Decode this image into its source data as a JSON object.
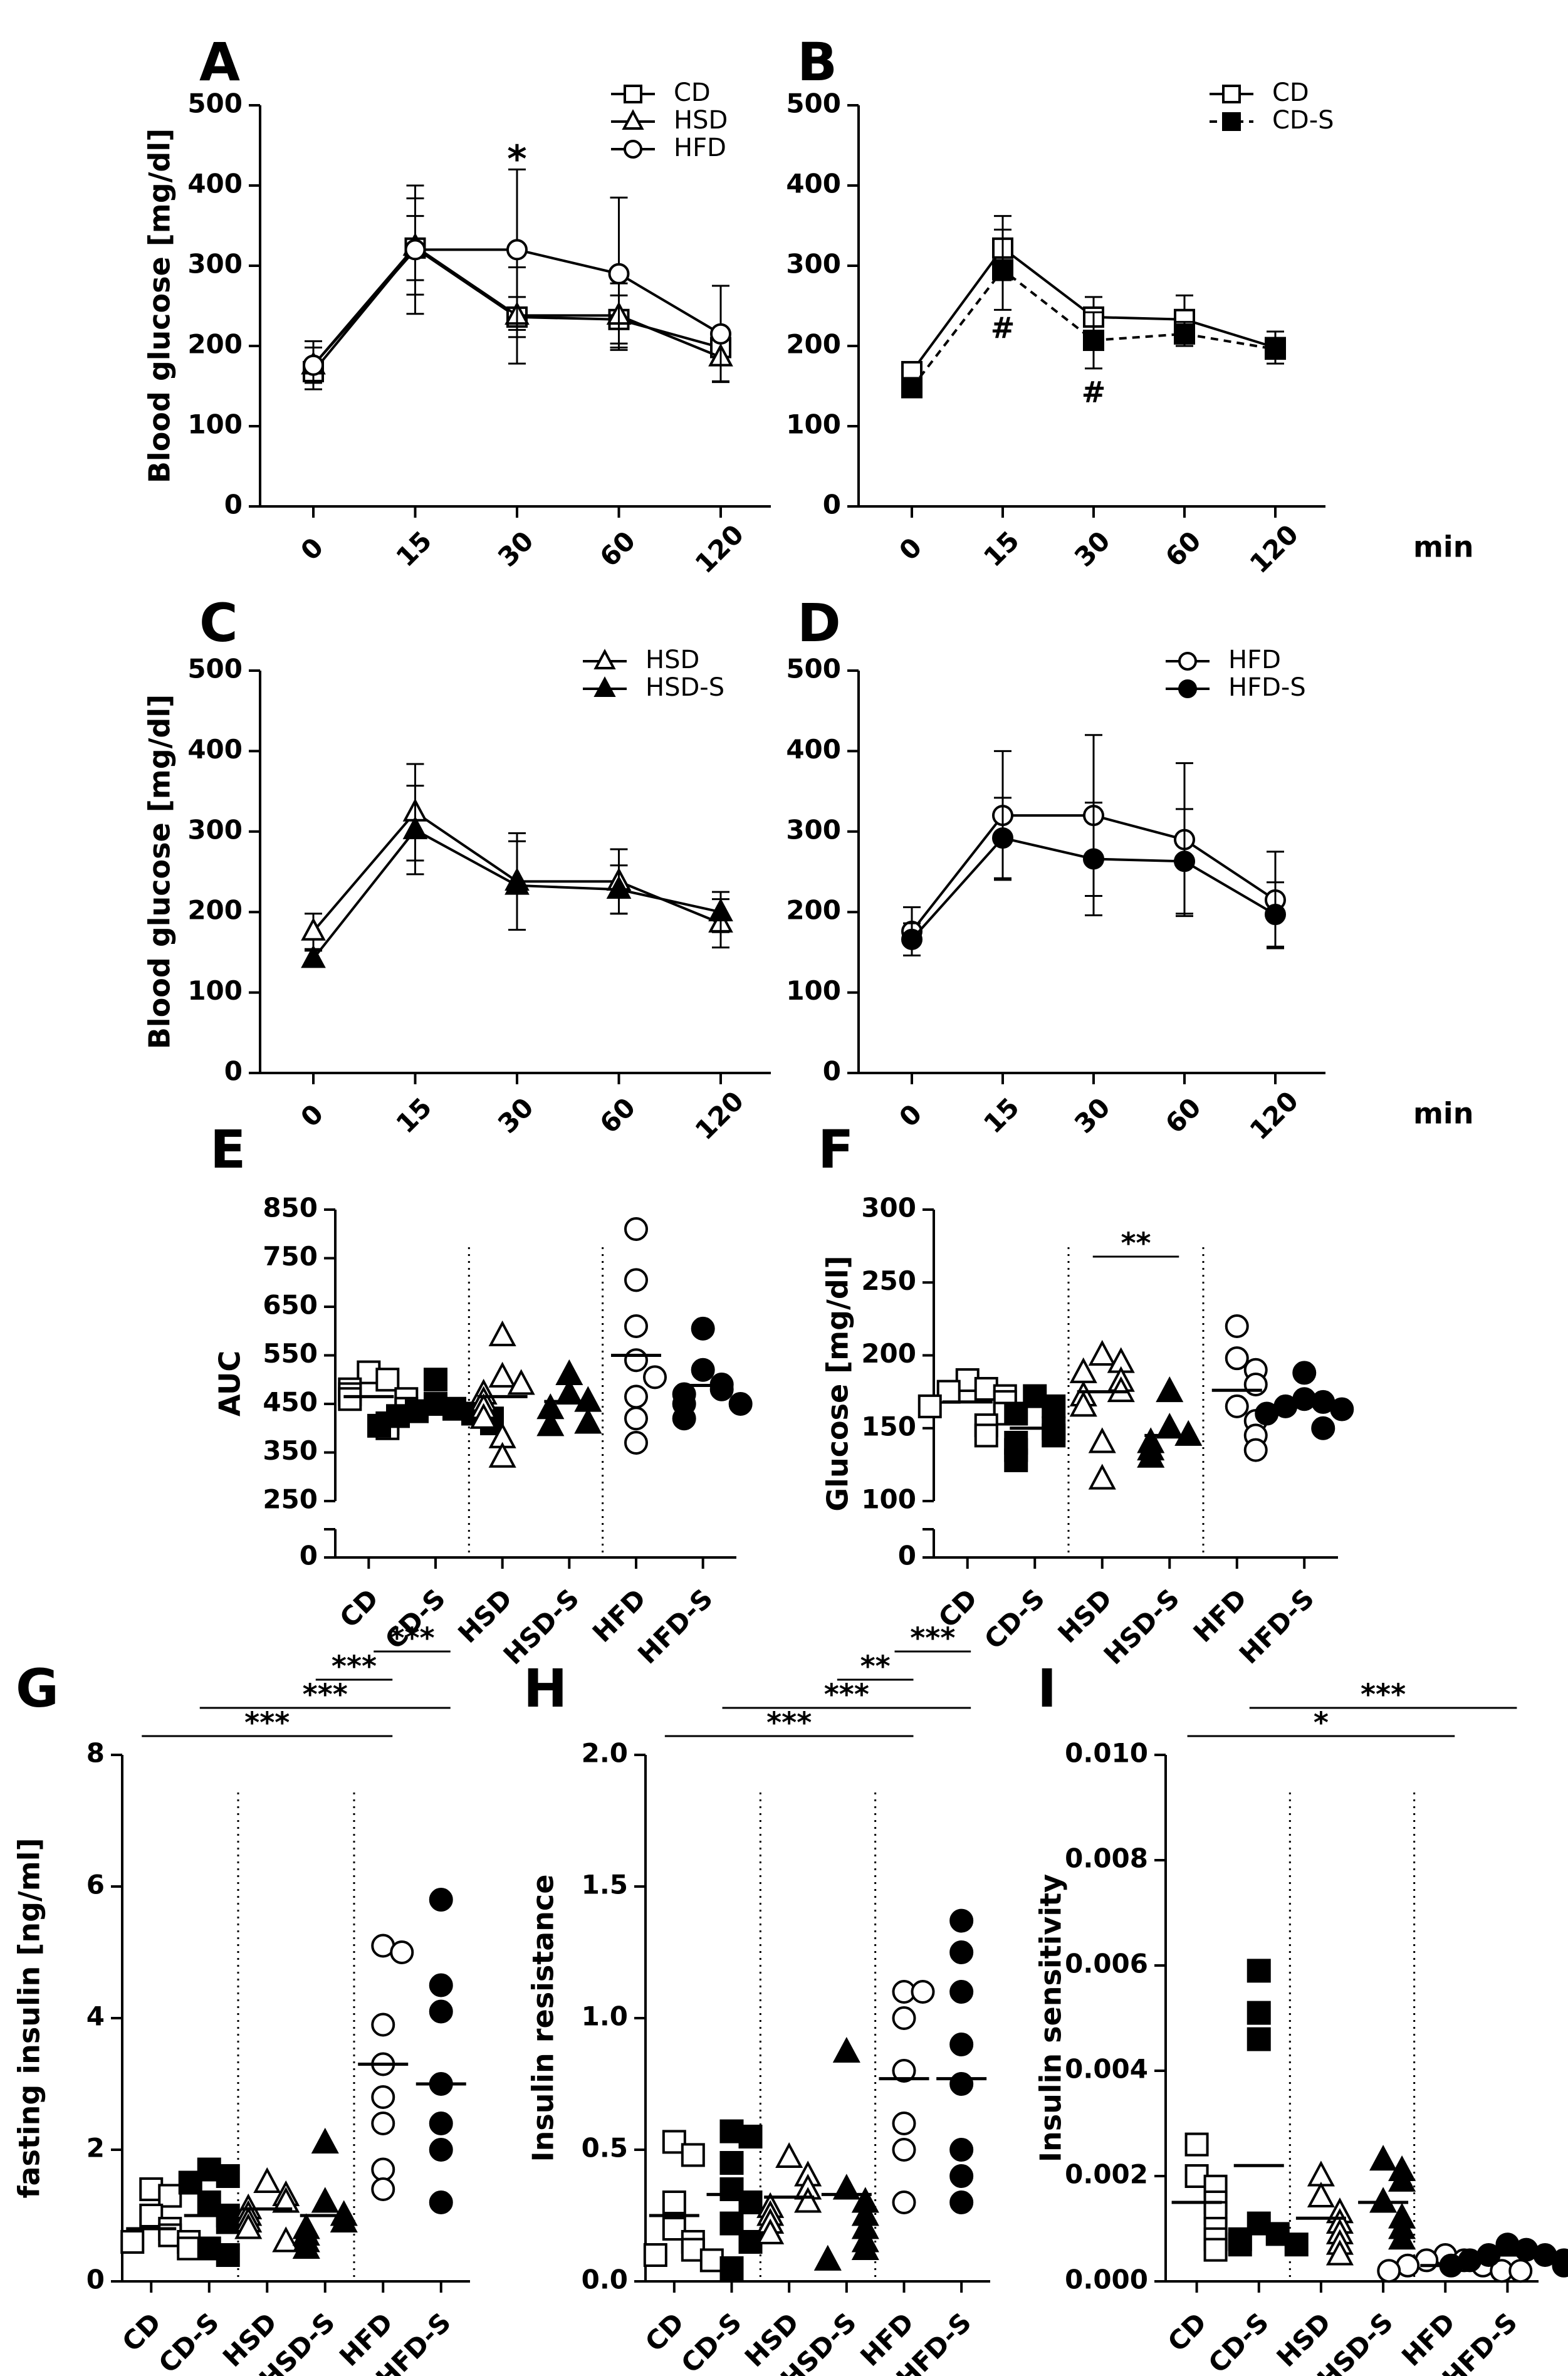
{
  "chart_data": [
    {
      "id": "A",
      "type": "line",
      "panel_label": "A",
      "ylabel": "Blood glucose [mg/dl]",
      "xlabel": "min",
      "ylim": [
        0,
        500
      ],
      "yticks": [
        0,
        100,
        200,
        300,
        400,
        500
      ],
      "categories": [
        "0",
        "15",
        "30",
        "60",
        "120"
      ],
      "series": [
        {
          "name": "CD",
          "marker": "square-open",
          "dashed": false,
          "values": [
            168,
            322,
            236,
            233,
            198
          ],
          "err": [
            12,
            40,
            25,
            30,
            20
          ]
        },
        {
          "name": "HSD",
          "marker": "triangle-open",
          "dashed": false,
          "values": [
            176,
            324,
            238,
            238,
            186
          ],
          "err": [
            22,
            60,
            60,
            40,
            30
          ]
        },
        {
          "name": "HFD",
          "marker": "circle-open",
          "dashed": false,
          "values": [
            176,
            320,
            320,
            290,
            215
          ],
          "err": [
            30,
            80,
            100,
            95,
            60
          ]
        }
      ],
      "annotations": [
        {
          "text": "*",
          "x": "30",
          "y": 430
        }
      ]
    },
    {
      "id": "B",
      "type": "line",
      "panel_label": "B",
      "ylabel": "",
      "xlabel": "min",
      "ylim": [
        0,
        500
      ],
      "yticks": [
        0,
        100,
        200,
        300,
        400,
        500
      ],
      "categories": [
        "0",
        "15",
        "30",
        "60",
        "120"
      ],
      "series": [
        {
          "name": "CD",
          "marker": "square-open",
          "dashed": false,
          "values": [
            168,
            322,
            236,
            233,
            198
          ],
          "err": [
            12,
            40,
            25,
            30,
            20
          ]
        },
        {
          "name": "CD-S",
          "marker": "square-filled",
          "dashed": true,
          "values": [
            148,
            295,
            207,
            215,
            196
          ],
          "err": [
            12,
            50,
            35,
            15,
            12
          ]
        }
      ],
      "annotations": [
        {
          "text": "#",
          "x": "15",
          "y": 220
        },
        {
          "text": "#",
          "x": "30",
          "y": 140
        }
      ]
    },
    {
      "id": "C",
      "type": "line",
      "panel_label": "C",
      "ylabel": "Blood glucose [mg/dl]",
      "xlabel": "min",
      "ylim": [
        0,
        500
      ],
      "yticks": [
        0,
        100,
        200,
        300,
        400,
        500
      ],
      "categories": [
        "0",
        "15",
        "30",
        "60",
        "120"
      ],
      "series": [
        {
          "name": "HSD",
          "marker": "triangle-open",
          "dashed": false,
          "values": [
            176,
            324,
            238,
            238,
            186
          ],
          "err": [
            22,
            60,
            60,
            40,
            30
          ]
        },
        {
          "name": "HSD-S",
          "marker": "triangle-filled",
          "dashed": false,
          "values": [
            142,
            302,
            233,
            228,
            200
          ],
          "err": [
            10,
            55,
            55,
            30,
            25
          ]
        }
      ],
      "annotations": []
    },
    {
      "id": "D",
      "type": "line",
      "panel_label": "D",
      "ylabel": "",
      "xlabel": "min",
      "ylim": [
        0,
        500
      ],
      "yticks": [
        0,
        100,
        200,
        300,
        400,
        500
      ],
      "categories": [
        "0",
        "15",
        "30",
        "60",
        "120"
      ],
      "series": [
        {
          "name": "HFD",
          "marker": "circle-open",
          "dashed": false,
          "values": [
            176,
            320,
            320,
            290,
            215
          ],
          "err": [
            30,
            80,
            100,
            95,
            60
          ]
        },
        {
          "name": "HFD-S",
          "marker": "circle-filled",
          "dashed": false,
          "values": [
            166,
            292,
            266,
            263,
            197
          ],
          "err": [
            20,
            50,
            70,
            65,
            40
          ]
        }
      ],
      "annotations": []
    },
    {
      "id": "E",
      "type": "scatter",
      "panel_label": "E",
      "ylabel": "AUC",
      "ylim": [
        250,
        850
      ],
      "yticks": [
        250,
        350,
        450,
        550,
        650,
        750,
        850
      ],
      "extra_ytick": "0",
      "categories": [
        "CD",
        "CD-S",
        "HSD",
        "HSD-S",
        "HFD",
        "HFD-S"
      ],
      "markers": [
        "square-open",
        "square-filled",
        "triangle-open",
        "triangle-filled",
        "circle-open",
        "circle-filled"
      ],
      "groups": [
        [
          515,
          500,
          480,
          470,
          460,
          460,
          440,
          410,
          400
        ],
        [
          500,
          450,
          440,
          435,
          430,
          425,
          420,
          410,
          405
        ],
        [
          590,
          505,
          490,
          470,
          455,
          440,
          420,
          380,
          340
        ],
        [
          510,
          470,
          455,
          440,
          410,
          405
        ],
        [
          810,
          705,
          610,
          540,
          505,
          465,
          420,
          370
        ],
        [
          605,
          520,
          490,
          480,
          470,
          450,
          450,
          420
        ]
      ],
      "means": [
        465,
        440,
        465,
        455,
        550,
        488
      ],
      "separators_after": [
        2,
        4
      ],
      "brackets": []
    },
    {
      "id": "F",
      "type": "scatter",
      "panel_label": "F",
      "ylabel": "Glucose [mg/dl]",
      "ylim": [
        100,
        300
      ],
      "yticks": [
        100,
        150,
        200,
        250,
        300
      ],
      "extra_ytick": "0",
      "categories": [
        "CD",
        "CD-S",
        "HSD",
        "HSD-S",
        "HFD",
        "HFD-S"
      ],
      "markers": [
        "square-open",
        "square-filled",
        "triangle-open",
        "triangle-filled",
        "circle-open",
        "circle-filled"
      ],
      "groups": [
        [
          183,
          177,
          175,
          172,
          168,
          165,
          160,
          152,
          145
        ],
        [
          172,
          165,
          160,
          150,
          145,
          140,
          135,
          128
        ],
        [
          200,
          195,
          188,
          182,
          175,
          172,
          165,
          140,
          115
        ],
        [
          175,
          150,
          145,
          140,
          135,
          130
        ],
        [
          220,
          198,
          190,
          180,
          165,
          155,
          145,
          135
        ],
        [
          188,
          170,
          168,
          165,
          163,
          160,
          150
        ]
      ],
      "means": [
        168,
        150,
        175,
        145,
        176,
        166
      ],
      "separators_after": [
        2,
        4
      ],
      "brackets": [
        {
          "from": 2,
          "to": 3,
          "text": "**",
          "level": 0
        }
      ]
    },
    {
      "id": "G",
      "type": "scatter",
      "panel_label": "G",
      "ylabel": "fasting insulin [ng/ml]",
      "ylim": [
        0,
        8
      ],
      "yticks": [
        0,
        2,
        4,
        6,
        8
      ],
      "categories": [
        "CD",
        "CD-S",
        "HSD",
        "HSD-S",
        "HFD",
        "HFD-S"
      ],
      "markers": [
        "square-open",
        "square-filled",
        "triangle-open",
        "triangle-filled",
        "circle-open",
        "circle-filled"
      ],
      "groups": [
        [
          1.4,
          1.3,
          1.0,
          0.8,
          0.7,
          0.6,
          0.6,
          0.5
        ],
        [
          1.7,
          1.6,
          1.5,
          1.2,
          1.0,
          0.9,
          0.5,
          0.4
        ],
        [
          1.5,
          1.3,
          1.2,
          1.1,
          1.0,
          0.9,
          0.8,
          0.6
        ],
        [
          2.1,
          1.2,
          1.0,
          0.9,
          0.8,
          0.7,
          0.6,
          0.5
        ],
        [
          5.1,
          5.0,
          3.9,
          3.3,
          2.8,
          2.4,
          1.7,
          1.4
        ],
        [
          5.8,
          4.5,
          4.1,
          3.0,
          2.4,
          2.0,
          1.2
        ]
      ],
      "means": [
        0.8,
        1.0,
        1.1,
        1.0,
        3.3,
        3.0
      ],
      "separators_after": [
        2,
        4
      ],
      "brackets": [
        {
          "from": 0,
          "to": 4,
          "text": "***",
          "level": 0
        },
        {
          "from": 1,
          "to": 5,
          "text": "***",
          "level": 1
        },
        {
          "from": 3,
          "to": 4,
          "text": "***",
          "level": 2
        },
        {
          "from": 4,
          "to": 5,
          "text": "***",
          "level": 3
        }
      ]
    },
    {
      "id": "H",
      "type": "scatter",
      "panel_label": "H",
      "ylabel": "Insulin resistance",
      "ylim": [
        0,
        2.0
      ],
      "yticks": [
        0.0,
        0.5,
        1.0,
        1.5,
        2.0
      ],
      "categories": [
        "CD",
        "CD-S",
        "HSD",
        "HSD-S",
        "HFD",
        "HFD-S"
      ],
      "markers": [
        "square-open",
        "square-filled",
        "triangle-open",
        "triangle-filled",
        "circle-open",
        "circle-filled"
      ],
      "groups": [
        [
          0.53,
          0.48,
          0.3,
          0.2,
          0.15,
          0.12,
          0.1,
          0.08
        ],
        [
          0.57,
          0.55,
          0.45,
          0.35,
          0.3,
          0.22,
          0.15,
          0.05
        ],
        [
          0.47,
          0.4,
          0.35,
          0.3,
          0.28,
          0.25,
          0.22,
          0.18
        ],
        [
          0.87,
          0.35,
          0.3,
          0.25,
          0.2,
          0.15,
          0.12,
          0.08
        ],
        [
          1.1,
          1.1,
          1.0,
          0.8,
          0.6,
          0.5,
          0.3
        ],
        [
          1.37,
          1.25,
          1.1,
          0.9,
          0.75,
          0.5,
          0.4,
          0.3
        ]
      ],
      "means": [
        0.25,
        0.33,
        0.32,
        0.33,
        0.77,
        0.77
      ],
      "separators_after": [
        2,
        4
      ],
      "brackets": [
        {
          "from": 0,
          "to": 4,
          "text": "***",
          "level": 0
        },
        {
          "from": 1,
          "to": 5,
          "text": "***",
          "level": 1
        },
        {
          "from": 3,
          "to": 4,
          "text": "**",
          "level": 2
        },
        {
          "from": 4,
          "to": 5,
          "text": "***",
          "level": 3
        }
      ]
    },
    {
      "id": "I",
      "type": "scatter",
      "panel_label": "I",
      "ylabel": "Insulin sensitivity",
      "ylim": [
        0,
        0.01
      ],
      "yticks": [
        0.0,
        0.002,
        0.004,
        0.006,
        0.008,
        0.01
      ],
      "categories": [
        "CD",
        "CD-S",
        "HSD",
        "HSD-S",
        "HFD",
        "HFD-S"
      ],
      "markers": [
        "square-open",
        "square-filled",
        "triangle-open",
        "triangle-filled",
        "circle-open",
        "circle-filled"
      ],
      "groups": [
        [
          0.0026,
          0.002,
          0.0018,
          0.0015,
          0.0013,
          0.001,
          0.0008,
          0.0006
        ],
        [
          0.0059,
          0.0051,
          0.0046,
          0.0011,
          0.0009,
          0.0008,
          0.0007,
          0.0007
        ],
        [
          0.002,
          0.0016,
          0.0013,
          0.0011,
          0.0009,
          0.0007,
          0.0005
        ],
        [
          0.0023,
          0.0021,
          0.0019,
          0.0015,
          0.0012,
          0.001,
          0.0008
        ],
        [
          0.0005,
          0.0004,
          0.0004,
          0.0003,
          0.0003,
          0.0002,
          0.0002,
          0.0002
        ],
        [
          0.0007,
          0.0006,
          0.0005,
          0.0005,
          0.0004,
          0.0004,
          0.0003,
          0.0003
        ]
      ],
      "means": [
        0.0015,
        0.0022,
        0.0012,
        0.0015,
        0.0003,
        0.0005
      ],
      "separators_after": [
        2,
        4
      ],
      "brackets": [
        {
          "from": 0,
          "to": 4,
          "text": "*",
          "level": 0
        },
        {
          "from": 1,
          "to": 5,
          "text": "***",
          "level": 1
        }
      ]
    }
  ]
}
